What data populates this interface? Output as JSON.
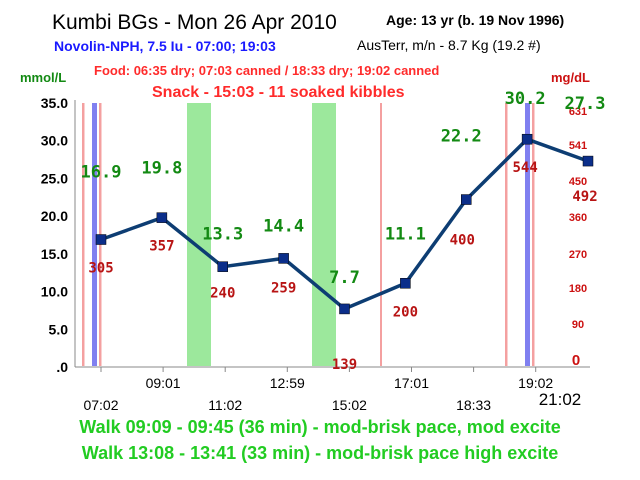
{
  "header": {
    "title": "Kumbi BGs - Mon 26 Apr 2010",
    "age": "Age: 13 yr (b. 19 Nov 1996)",
    "insulin": "Novolin-NPH, 7.5 Iu - 07:00; 19:03",
    "weight": "AusTerr, m/n - 8.7 Kg (19.2 #)",
    "food": "Food: 06:35 dry; 07:03 canned / 18:33 dry; 19:02 canned",
    "snack": "Snack - 15:03 - 11 soaked kibbles"
  },
  "chart_data": {
    "type": "line",
    "y_unit_left": "mmol/L",
    "y_unit_right": "mg/dL",
    "y_ticks": [
      "35.0",
      "30.0",
      "25.0",
      "20.0",
      "15.0",
      "10.0",
      "5.0",
      ".0"
    ],
    "right_ticks": [
      "631",
      "541",
      "450",
      "360",
      "270",
      "180",
      "90",
      "0"
    ],
    "ylim": [
      0,
      35
    ],
    "x_ticks": [
      {
        "label": "07:02",
        "row": "low"
      },
      {
        "label": "09:01",
        "row": "high"
      },
      {
        "label": "11:02",
        "row": "low"
      },
      {
        "label": "12:59",
        "row": "high"
      },
      {
        "label": "15:02",
        "row": "low"
      },
      {
        "label": "17:01",
        "row": "high"
      },
      {
        "label": "18:33",
        "row": "low"
      },
      {
        "label": "19:02",
        "row": "high"
      }
    ],
    "x_last_label": "21:02",
    "series": [
      {
        "values": [
          16.9,
          19.8,
          13.3,
          14.4,
          7.7,
          11.1,
          22.2,
          30.2,
          27.3
        ],
        "mmol_labels": [
          "16.9",
          "19.8",
          "13.3",
          "14.4",
          "7.7",
          "11.1",
          "22.2",
          "30.2",
          "27.3"
        ],
        "mgdl_labels": [
          "305",
          "357",
          "240",
          "259",
          "139",
          "200",
          "400",
          "544",
          "492"
        ]
      }
    ],
    "colors": {
      "line": "#0d3d73",
      "walk_band": "#9ce89c",
      "food_line": "#f08080",
      "insulin_line": "#8080f0",
      "mmol_label": "#138a13",
      "mgdl_label": "#b81414"
    }
  },
  "footer": {
    "walk1": "Walk 09:09 - 09:45 (36 min) - mod-brisk pace, mod excite",
    "walk2": "Walk 13:08 - 13:41 (33 min) - mod-brisk pace high excite"
  }
}
